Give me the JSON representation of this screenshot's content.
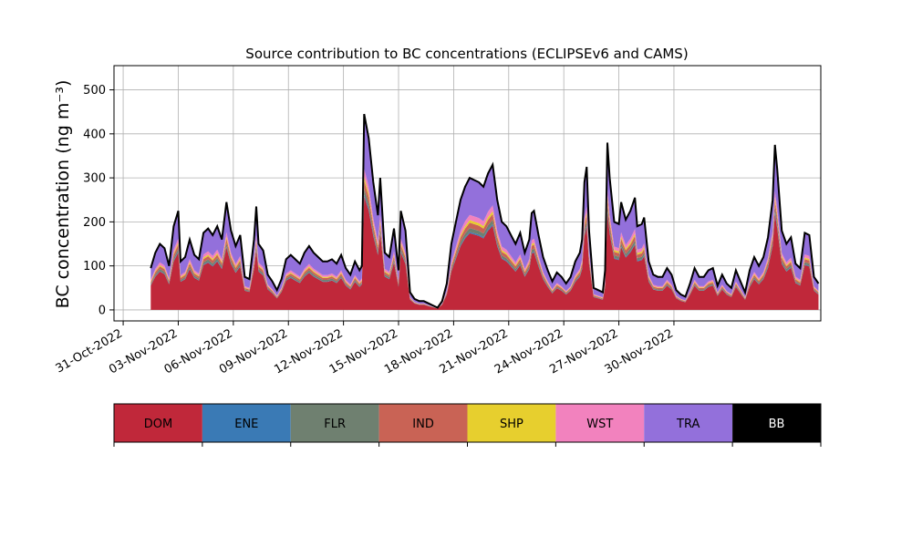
{
  "chart_data": {
    "type": "area",
    "title": "Source contribution to BC concentrations (ECLIPSEv6 and CAMS)",
    "ylabel": "BC concentration (ng m⁻³)",
    "xlabel": "",
    "grid": true,
    "stacked": true,
    "ylim": [
      -25,
      555
    ],
    "xlim": [
      "2022-10-30T12:00",
      "2022-12-08T00:00"
    ],
    "xticks": [
      "2022-10-31",
      "2022-11-03",
      "2022-11-06",
      "2022-11-09",
      "2022-11-12",
      "2022-11-15",
      "2022-11-18",
      "2022-11-21",
      "2022-11-24",
      "2022-11-27",
      "2022-11-30"
    ],
    "xtick_labels": [
      "31-Oct-2022",
      "03-Nov-2022",
      "06-Nov-2022",
      "09-Nov-2022",
      "12-Nov-2022",
      "15-Nov-2022",
      "18-Nov-2022",
      "21-Nov-2022",
      "24-Nov-2022",
      "27-Nov-2022",
      "30-Nov-2022"
    ],
    "yticks": [
      0,
      100,
      200,
      300,
      400,
      500
    ],
    "legend_position": "below chart, horizontal color bar",
    "total_points": [
      [
        "2022-11-01T12:00",
        95
      ],
      [
        "2022-11-01T18:00",
        130
      ],
      [
        "2022-11-02T00:00",
        150
      ],
      [
        "2022-11-02T06:00",
        140
      ],
      [
        "2022-11-02T12:00",
        100
      ],
      [
        "2022-11-02T18:00",
        190
      ],
      [
        "2022-11-03T00:00",
        225
      ],
      [
        "2022-11-03T03:00",
        110
      ],
      [
        "2022-11-03T09:00",
        120
      ],
      [
        "2022-11-03T15:00",
        160
      ],
      [
        "2022-11-03T21:00",
        125
      ],
      [
        "2022-11-04T03:00",
        115
      ],
      [
        "2022-11-04T09:00",
        175
      ],
      [
        "2022-11-04T15:00",
        185
      ],
      [
        "2022-11-04T21:00",
        170
      ],
      [
        "2022-11-05T03:00",
        190
      ],
      [
        "2022-11-05T09:00",
        160
      ],
      [
        "2022-11-05T15:00",
        245
      ],
      [
        "2022-11-05T21:00",
        180
      ],
      [
        "2022-11-06T03:00",
        145
      ],
      [
        "2022-11-06T09:00",
        170
      ],
      [
        "2022-11-06T15:00",
        75
      ],
      [
        "2022-11-06T21:00",
        70
      ],
      [
        "2022-11-07T03:00",
        160
      ],
      [
        "2022-11-07T06:00",
        235
      ],
      [
        "2022-11-07T09:00",
        150
      ],
      [
        "2022-11-07T15:00",
        135
      ],
      [
        "2022-11-07T21:00",
        80
      ],
      [
        "2022-11-08T03:00",
        65
      ],
      [
        "2022-11-08T09:00",
        45
      ],
      [
        "2022-11-08T15:00",
        70
      ],
      [
        "2022-11-08T21:00",
        115
      ],
      [
        "2022-11-09T03:00",
        125
      ],
      [
        "2022-11-09T09:00",
        115
      ],
      [
        "2022-11-09T15:00",
        105
      ],
      [
        "2022-11-09T21:00",
        130
      ],
      [
        "2022-11-10T03:00",
        145
      ],
      [
        "2022-11-10T09:00",
        130
      ],
      [
        "2022-11-10T15:00",
        120
      ],
      [
        "2022-11-10T21:00",
        110
      ],
      [
        "2022-11-11T03:00",
        110
      ],
      [
        "2022-11-11T09:00",
        115
      ],
      [
        "2022-11-11T15:00",
        105
      ],
      [
        "2022-11-11T21:00",
        125
      ],
      [
        "2022-11-12T03:00",
        95
      ],
      [
        "2022-11-12T09:00",
        80
      ],
      [
        "2022-11-12T15:00",
        110
      ],
      [
        "2022-11-12T21:00",
        90
      ],
      [
        "2022-11-13T00:00",
        100
      ],
      [
        "2022-11-13T03:00",
        445
      ],
      [
        "2022-11-13T09:00",
        390
      ],
      [
        "2022-11-13T15:00",
        290
      ],
      [
        "2022-11-13T21:00",
        215
      ],
      [
        "2022-11-14T00:00",
        300
      ],
      [
        "2022-11-14T06:00",
        130
      ],
      [
        "2022-11-14T12:00",
        120
      ],
      [
        "2022-11-14T18:00",
        185
      ],
      [
        "2022-11-15T00:00",
        90
      ],
      [
        "2022-11-15T03:00",
        225
      ],
      [
        "2022-11-15T09:00",
        180
      ],
      [
        "2022-11-15T15:00",
        40
      ],
      [
        "2022-11-15T21:00",
        25
      ],
      [
        "2022-11-16T03:00",
        20
      ],
      [
        "2022-11-16T09:00",
        20
      ],
      [
        "2022-11-16T15:00",
        15
      ],
      [
        "2022-11-16T21:00",
        10
      ],
      [
        "2022-11-17T03:00",
        5
      ],
      [
        "2022-11-17T09:00",
        20
      ],
      [
        "2022-11-17T15:00",
        60
      ],
      [
        "2022-11-17T21:00",
        150
      ],
      [
        "2022-11-18T03:00",
        200
      ],
      [
        "2022-11-18T09:00",
        250
      ],
      [
        "2022-11-18T15:00",
        280
      ],
      [
        "2022-11-18T21:00",
        300
      ],
      [
        "2022-11-19T03:00",
        295
      ],
      [
        "2022-11-19T09:00",
        290
      ],
      [
        "2022-11-19T15:00",
        280
      ],
      [
        "2022-11-19T21:00",
        310
      ],
      [
        "2022-11-20T03:00",
        330
      ],
      [
        "2022-11-20T09:00",
        250
      ],
      [
        "2022-11-20T15:00",
        200
      ],
      [
        "2022-11-20T21:00",
        190
      ],
      [
        "2022-11-21T03:00",
        170
      ],
      [
        "2022-11-21T09:00",
        150
      ],
      [
        "2022-11-21T15:00",
        175
      ],
      [
        "2022-11-21T21:00",
        130
      ],
      [
        "2022-11-22T03:00",
        160
      ],
      [
        "2022-11-22T06:00",
        220
      ],
      [
        "2022-11-22T09:00",
        225
      ],
      [
        "2022-11-22T15:00",
        170
      ],
      [
        "2022-11-22T21:00",
        120
      ],
      [
        "2022-11-23T03:00",
        90
      ],
      [
        "2022-11-23T09:00",
        65
      ],
      [
        "2022-11-23T15:00",
        85
      ],
      [
        "2022-11-23T21:00",
        75
      ],
      [
        "2022-11-24T03:00",
        60
      ],
      [
        "2022-11-24T09:00",
        75
      ],
      [
        "2022-11-24T15:00",
        110
      ],
      [
        "2022-11-24T21:00",
        130
      ],
      [
        "2022-11-25T00:00",
        160
      ],
      [
        "2022-11-25T03:00",
        290
      ],
      [
        "2022-11-25T06:00",
        325
      ],
      [
        "2022-11-25T09:00",
        180
      ],
      [
        "2022-11-25T15:00",
        50
      ],
      [
        "2022-11-25T21:00",
        45
      ],
      [
        "2022-11-26T03:00",
        40
      ],
      [
        "2022-11-26T06:00",
        90
      ],
      [
        "2022-11-26T09:00",
        380
      ],
      [
        "2022-11-26T12:00",
        300
      ],
      [
        "2022-11-26T18:00",
        200
      ],
      [
        "2022-11-27T00:00",
        195
      ],
      [
        "2022-11-27T03:00",
        245
      ],
      [
        "2022-11-27T09:00",
        205
      ],
      [
        "2022-11-27T15:00",
        225
      ],
      [
        "2022-11-27T21:00",
        255
      ],
      [
        "2022-11-28T00:00",
        190
      ],
      [
        "2022-11-28T06:00",
        195
      ],
      [
        "2022-11-28T09:00",
        210
      ],
      [
        "2022-11-28T15:00",
        110
      ],
      [
        "2022-11-28T21:00",
        80
      ],
      [
        "2022-11-29T03:00",
        75
      ],
      [
        "2022-11-29T09:00",
        75
      ],
      [
        "2022-11-29T15:00",
        95
      ],
      [
        "2022-11-29T21:00",
        80
      ],
      [
        "2022-11-30T03:00",
        45
      ],
      [
        "2022-11-30T09:00",
        35
      ],
      [
        "2022-11-30T15:00",
        30
      ],
      [
        "2022-11-30T21:00",
        60
      ],
      [
        "2022-12-01T03:00",
        95
      ],
      [
        "2022-12-01T09:00",
        75
      ],
      [
        "2022-12-01T15:00",
        75
      ],
      [
        "2022-12-01T21:00",
        90
      ],
      [
        "2022-12-02T03:00",
        95
      ],
      [
        "2022-12-02T09:00",
        55
      ],
      [
        "2022-12-02T15:00",
        80
      ],
      [
        "2022-12-02T21:00",
        60
      ],
      [
        "2022-12-03T03:00",
        50
      ],
      [
        "2022-12-03T09:00",
        90
      ],
      [
        "2022-12-03T15:00",
        65
      ],
      [
        "2022-12-03T21:00",
        40
      ],
      [
        "2022-12-04T03:00",
        90
      ],
      [
        "2022-12-04T09:00",
        120
      ],
      [
        "2022-12-04T15:00",
        100
      ],
      [
        "2022-12-04T21:00",
        120
      ],
      [
        "2022-12-05T03:00",
        165
      ],
      [
        "2022-12-05T09:00",
        250
      ],
      [
        "2022-12-05T12:00",
        375
      ],
      [
        "2022-12-05T15:00",
        320
      ],
      [
        "2022-12-05T21:00",
        180
      ],
      [
        "2022-12-06T03:00",
        150
      ],
      [
        "2022-12-06T09:00",
        165
      ],
      [
        "2022-12-06T15:00",
        105
      ],
      [
        "2022-12-06T21:00",
        95
      ],
      [
        "2022-12-07T03:00",
        175
      ],
      [
        "2022-12-07T09:00",
        170
      ],
      [
        "2022-12-07T15:00",
        75
      ],
      [
        "2022-12-07T21:00",
        60
      ]
    ],
    "series": [
      {
        "name": "DOM",
        "color": "#c0283a"
      },
      {
        "name": "ENE",
        "color": "#3a7ab5"
      },
      {
        "name": "FLR",
        "color": "#6f8070"
      },
      {
        "name": "IND",
        "color": "#c96355"
      },
      {
        "name": "SHP",
        "color": "#e7cf2e"
      },
      {
        "name": "WST",
        "color": "#f282be"
      },
      {
        "name": "TRA",
        "color": "#9370db"
      },
      {
        "name": "BB",
        "color": "#000000"
      }
    ],
    "fractions": {
      "DOM": 0.58,
      "ENE": 0.01,
      "FLR": 0.03,
      "IND": 0.04,
      "SHP": 0.02,
      "WST": 0.04,
      "TRA": 0.28
    }
  }
}
